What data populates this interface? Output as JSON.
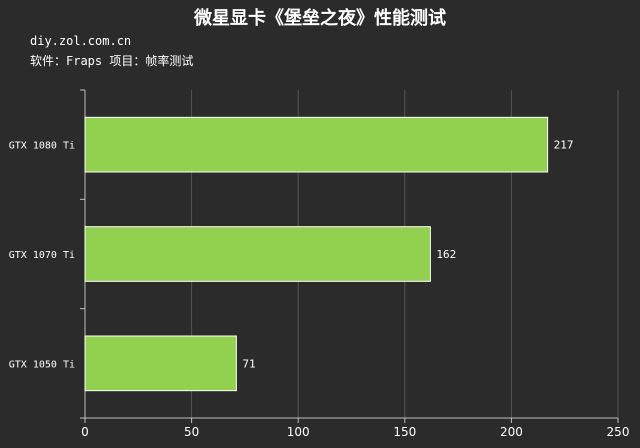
{
  "header": {
    "title": "微星显卡《堡垒之夜》性能测试",
    "source": "diy.zol.com.cn",
    "software": "软件：Fraps 项目：帧率测试"
  },
  "colors": {
    "background": "#2b2b2b",
    "bar": "#92d050",
    "bar_border": "#ffffff",
    "axis": "#bfbfbf",
    "grid": "#555555",
    "text": "#ffffff"
  },
  "chart_data": {
    "type": "bar",
    "orientation": "horizontal",
    "categories": [
      "GTX 1080 Ti",
      "GTX 1070 Ti",
      "GTX 1050 Ti"
    ],
    "values": [
      217,
      162,
      71
    ],
    "xlim": [
      0,
      250
    ],
    "xticks": [
      0,
      50,
      100,
      150,
      200,
      250
    ],
    "grid": true,
    "legend": "none",
    "title": "微星显卡《堡垒之夜》性能测试"
  }
}
